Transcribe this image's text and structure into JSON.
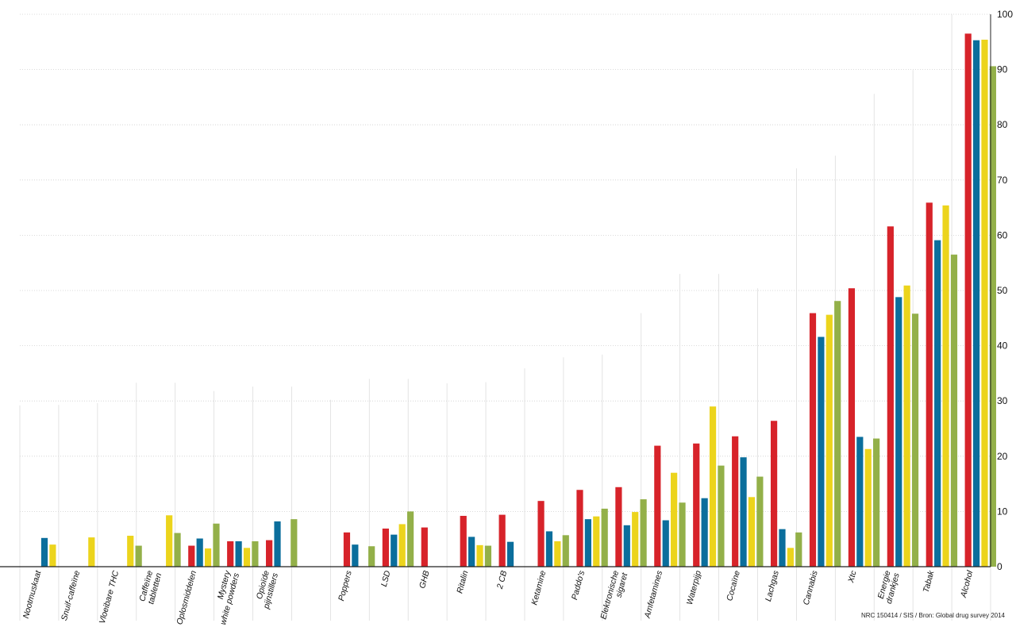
{
  "chart_data": {
    "type": "bar",
    "ylim": [
      0,
      100
    ],
    "yticks": [
      0,
      10,
      20,
      30,
      40,
      50,
      60,
      70,
      80,
      90,
      100
    ],
    "grid": true,
    "colors": [
      "#d7232a",
      "#0b6e9c",
      "#ecd41c",
      "#93b049"
    ],
    "categories": [
      "Nootmuskaat",
      "Snuif-caffeïne",
      "Vloeibare THC",
      "Caffeïne\ntabletten",
      "Oplosmiddelen",
      "Mystery\nwhite powders",
      "Opioïde\npijnstillers",
      "",
      "Poppers",
      "LSD",
      "GHB",
      "Ritalin",
      "2 CB",
      "Ketamine",
      "Paddo's",
      "Elektronische\nsigaret",
      "Amfetamines",
      "Waterpijp",
      "Cocaïne",
      "Lachgas",
      "Cannabis",
      "Xtc",
      "Energie\ndrankjes",
      "Tabak",
      "Alcohol"
    ],
    "series": [
      {
        "values": [
          null,
          null,
          null,
          null,
          3.8,
          4.6,
          4.8,
          null,
          6.2,
          6.9,
          7.1,
          9.2,
          9.4,
          11.9,
          13.9,
          14.4,
          21.9,
          22.3,
          23.6,
          26.4,
          45.9,
          50.4,
          61.6,
          65.9,
          96.5
        ]
      },
      {
        "values": [
          5.2,
          null,
          null,
          null,
          5.1,
          4.6,
          8.2,
          null,
          4.0,
          5.8,
          null,
          5.4,
          4.5,
          6.4,
          8.6,
          7.5,
          8.4,
          12.4,
          19.8,
          6.8,
          41.6,
          23.5,
          48.8,
          59.1,
          95.3
        ]
      },
      {
        "values": [
          4.0,
          5.3,
          5.6,
          9.3,
          3.3,
          3.4,
          null,
          null,
          null,
          7.7,
          null,
          3.9,
          null,
          4.6,
          9.1,
          9.9,
          17.0,
          29.0,
          12.6,
          3.4,
          45.6,
          21.3,
          50.9,
          65.4,
          95.4
        ]
      },
      {
        "values": [
          null,
          null,
          3.8,
          6.1,
          7.8,
          4.6,
          8.6,
          null,
          3.7,
          10.0,
          null,
          3.8,
          null,
          5.7,
          10.5,
          12.2,
          11.6,
          18.3,
          16.3,
          6.2,
          48.1,
          23.2,
          45.8,
          56.5,
          90.6
        ]
      }
    ]
  },
  "source_note": "NRC 150414 / SIS / Bron: Global drug survey 2014"
}
